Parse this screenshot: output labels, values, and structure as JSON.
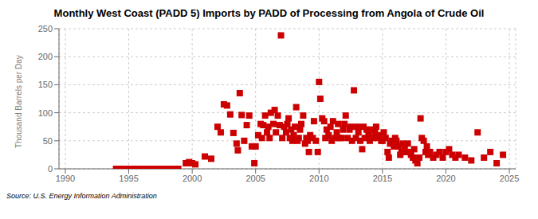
{
  "chart_data": {
    "type": "scatter",
    "title": "Monthly West Coast (PADD 5) Imports by PADD of Processing from Angola of Crude Oil",
    "ylabel": "Thousand Barrels per Day",
    "annotations": [
      "Source: U.S. Energy Information Administration"
    ],
    "xlim": [
      1989.5,
      2025.5
    ],
    "xticks": [
      1990,
      1995,
      2000,
      2005,
      2010,
      2015,
      2020,
      2025
    ],
    "ylim": [
      0,
      250
    ],
    "yticks": [
      0,
      50,
      100,
      150,
      200,
      250
    ],
    "grid": true,
    "series": [
      {
        "color": "#CC0000",
        "marker": "square",
        "x": [
          1999.5,
          1999.75,
          2000.0,
          2000.25,
          2001.0,
          2001.5,
          2002.0,
          2002.25,
          2002.5,
          2002.75,
          2003.0,
          2003.25,
          2003.5,
          2003.6,
          2003.75,
          2003.9,
          2004.1,
          2004.3,
          2004.5,
          2004.7,
          2004.9,
          2005.0,
          2005.2,
          2005.4,
          2005.5,
          2005.6,
          2005.75,
          2005.9,
          2006.0,
          2006.1,
          2006.2,
          2006.4,
          2006.5,
          2006.6,
          2006.75,
          2006.9,
          2007.0,
          2007.1,
          2007.25,
          2007.4,
          2007.5,
          2007.6,
          2007.7,
          2007.8,
          2007.9,
          2008.0,
          2008.1,
          2008.2,
          2008.3,
          2008.4,
          2008.5,
          2008.6,
          2008.75,
          2008.9,
          2009.0,
          2009.1,
          2009.2,
          2009.3,
          2009.5,
          2009.6,
          2009.75,
          2009.9,
          2010.0,
          2010.1,
          2010.25,
          2010.4,
          2010.5,
          2010.6,
          2010.75,
          2010.9,
          2011.0,
          2011.1,
          2011.25,
          2011.4,
          2011.5,
          2011.6,
          2011.75,
          2011.9,
          2012.0,
          2012.1,
          2012.25,
          2012.4,
          2012.5,
          2012.6,
          2012.75,
          2012.9,
          2013.0,
          2013.1,
          2013.25,
          2013.4,
          2013.5,
          2013.6,
          2013.75,
          2013.9,
          2014.0,
          2014.1,
          2014.25,
          2014.4,
          2014.5,
          2014.6,
          2014.75,
          2014.9,
          2015.0,
          2015.1,
          2015.25,
          2015.4,
          2015.5,
          2015.6,
          2015.75,
          2015.9,
          2016.0,
          2016.1,
          2016.25,
          2016.4,
          2016.5,
          2016.6,
          2016.75,
          2016.9,
          2017.0,
          2017.1,
          2017.25,
          2017.4,
          2017.5,
          2017.6,
          2017.75,
          2017.9,
          2018.0,
          2018.1,
          2018.25,
          2018.4,
          2018.5,
          2018.6,
          2018.75,
          2019.0,
          2019.25,
          2019.5,
          2019.75,
          2020.0,
          2020.25,
          2020.5,
          2020.75,
          2021.0,
          2021.5,
          2022.0,
          2022.5,
          2023.0,
          2023.5,
          2024.0,
          2024.5
        ],
        "values": [
          10,
          12,
          10,
          8,
          22,
          18,
          75,
          65,
          115,
          113,
          97,
          64,
          45,
          33,
          135,
          96,
          50,
          78,
          95,
          40,
          10,
          40,
          60,
          80,
          55,
          78,
          95,
          65,
          75,
          55,
          100,
          80,
          105,
          65,
          95,
          78,
          238,
          55,
          75,
          65,
          80,
          90,
          55,
          70,
          50,
          60,
          75,
          110,
          50,
          55,
          70,
          80,
          95,
          45,
          55,
          50,
          30,
          60,
          55,
          85,
          50,
          30,
          155,
          125,
          90,
          85,
          55,
          70,
          60,
          75,
          50,
          85,
          55,
          65,
          80,
          55,
          55,
          70,
          80,
          95,
          55,
          70,
          75,
          50,
          140,
          55,
          75,
          65,
          50,
          35,
          75,
          55,
          70,
          60,
          50,
          70,
          55,
          65,
          75,
          55,
          60,
          50,
          50,
          65,
          55,
          30,
          20,
          45,
          50,
          40,
          55,
          50,
          40,
          25,
          30,
          45,
          35,
          30,
          45,
          30,
          25,
          20,
          35,
          15,
          10,
          20,
          90,
          55,
          50,
          30,
          40,
          25,
          30,
          20,
          25,
          30,
          20,
          30,
          35,
          25,
          20,
          25,
          20,
          15,
          65,
          20,
          30,
          10,
          25
        ]
      },
      {
        "color": "#CC0000",
        "marker": "square",
        "x": [
          1994.0,
          1994.1,
          1994.2,
          1994.3,
          1994.4,
          1994.5,
          1994.6,
          1994.7,
          1994.8,
          1994.9,
          1995.0,
          1995.1,
          1995.2,
          1995.3,
          1995.4,
          1995.5,
          1995.6,
          1995.7,
          1995.8,
          1995.9,
          1996.0,
          1996.1,
          1996.2,
          1996.3,
          1996.4,
          1996.5,
          1996.6,
          1996.7,
          1996.8,
          1996.9,
          1997.0,
          1997.1,
          1997.2,
          1997.3,
          1997.4,
          1997.5,
          1997.6,
          1997.7,
          1997.8,
          1997.9,
          1998.0,
          1998.1,
          1998.2,
          1998.3,
          1998.4,
          1998.5,
          1998.6,
          1998.7,
          1998.8,
          1998.9
        ],
        "values": [
          0,
          0,
          0,
          0,
          0,
          0,
          0,
          0,
          0,
          0,
          0,
          0,
          0,
          0,
          0,
          0,
          0,
          0,
          0,
          0,
          0,
          0,
          0,
          0,
          0,
          0,
          0,
          0,
          0,
          0,
          0,
          0,
          0,
          0,
          0,
          0,
          0,
          0,
          0,
          0,
          0,
          0,
          0,
          0,
          0,
          0,
          0,
          0,
          0,
          0
        ]
      }
    ]
  }
}
